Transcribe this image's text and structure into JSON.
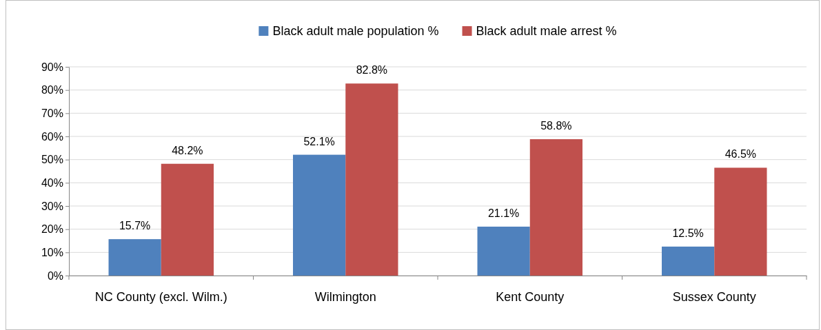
{
  "chart_data": {
    "type": "bar",
    "categories": [
      "NC County (excl. Wilm.)",
      "Wilmington",
      "Kent County",
      "Sussex County"
    ],
    "series": [
      {
        "name": "Black adult male population %",
        "color": "#4f81bd",
        "values": [
          15.7,
          52.1,
          21.1,
          12.5
        ],
        "value_labels": [
          "15.7%",
          "52.1%",
          "21.1%",
          "12.5%"
        ]
      },
      {
        "name": "Black adult male arrest %",
        "color": "#c0504d",
        "values": [
          48.2,
          82.8,
          58.8,
          46.5
        ],
        "value_labels": [
          "48.2%",
          "82.8%",
          "58.8%",
          "46.5%"
        ]
      }
    ],
    "ylim": [
      0,
      90
    ],
    "yticks": [
      {
        "value": 0,
        "label": "0%"
      },
      {
        "value": 10,
        "label": "10%"
      },
      {
        "value": 20,
        "label": "20%"
      },
      {
        "value": 30,
        "label": "30%"
      },
      {
        "value": 40,
        "label": "40%"
      },
      {
        "value": 50,
        "label": "50%"
      },
      {
        "value": 60,
        "label": "60%"
      },
      {
        "value": 70,
        "label": "70%"
      },
      {
        "value": 80,
        "label": "80%"
      },
      {
        "value": 90,
        "label": "90%"
      }
    ],
    "grid": "y",
    "legend": "top"
  }
}
